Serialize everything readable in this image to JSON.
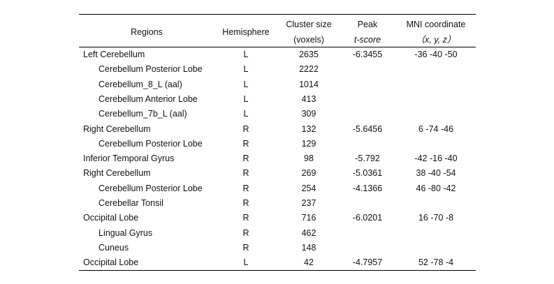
{
  "header": {
    "regions": "Regions",
    "hemisphere": "Hemisphere",
    "cluster_size": [
      "Cluster size",
      "(voxels)"
    ],
    "peak": [
      "Peak",
      "t-score"
    ],
    "mni": [
      "MNI coordinate",
      "（x, y, z）"
    ]
  },
  "groups": [
    {
      "row": {
        "region": "Left Cerebellum",
        "hemisphere": "L",
        "cluster_size": "2635",
        "peak": "-6.3455",
        "mni": "-36 -40 -50"
      },
      "children": [
        {
          "region": "Cerebellum Posterior Lobe",
          "hemisphere": "L",
          "cluster_size": "2222"
        },
        {
          "region": "Cerebellum_8_L (aal)",
          "hemisphere": "L",
          "cluster_size": "1014"
        },
        {
          "region": "Cerebellum Anterior Lobe",
          "hemisphere": "L",
          "cluster_size": "413"
        },
        {
          "region": "Cerebellum_7b_L (aal)",
          "hemisphere": "L",
          "cluster_size": "309"
        }
      ]
    },
    {
      "row": {
        "region": "Right Cerebellum",
        "hemisphere": "R",
        "cluster_size": "132",
        "peak": "-5.6456",
        "mni": "6 -74 -46"
      },
      "children": [
        {
          "region": "Cerebellum Posterior Lobe",
          "hemisphere": "R",
          "cluster_size": "129"
        }
      ]
    },
    {
      "row": {
        "region": "Inferior Temporal Gyrus",
        "hemisphere": "R",
        "cluster_size": "98",
        "peak": "-5.792",
        "mni": "-42 -16 -40"
      },
      "children": []
    },
    {
      "row": {
        "region": "Right Cerebellum",
        "hemisphere": "R",
        "cluster_size": "269",
        "peak": "-5.0361",
        "mni": "38 -40 -54"
      },
      "children": [
        {
          "region": "Cerebellum Posterior Lobe",
          "hemisphere": "R",
          "cluster_size": "254",
          "peak": "-4.1366",
          "mni": "46 -80 -42"
        },
        {
          "region": "Cerebellar Tonsil",
          "hemisphere": "R",
          "cluster_size": "237"
        }
      ]
    },
    {
      "row": {
        "region": "Occipital Lobe",
        "hemisphere": "R",
        "cluster_size": "716",
        "peak": "-6.0201",
        "mni": "16 -70 -8"
      },
      "children": [
        {
          "region": "Lingual Gyrus",
          "hemisphere": "R",
          "cluster_size": "462"
        },
        {
          "region": "Cuneus",
          "hemisphere": "R",
          "cluster_size": "148"
        }
      ]
    },
    {
      "row": {
        "region": "Occipital Lobe",
        "hemisphere": "L",
        "cluster_size": "42",
        "peak": "-4.7957",
        "mni": "52 -78 -4"
      },
      "children": []
    }
  ]
}
